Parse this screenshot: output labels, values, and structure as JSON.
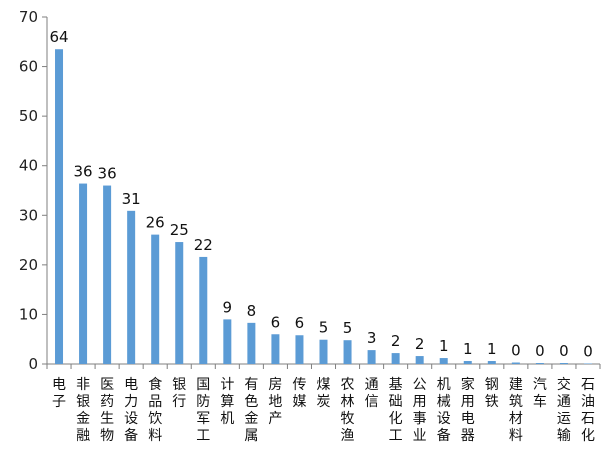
{
  "chart_data": {
    "type": "bar",
    "title": "",
    "xlabel": "",
    "ylabel": "",
    "ylim": [
      0,
      70
    ],
    "yticks": [
      0,
      10,
      20,
      30,
      40,
      50,
      60,
      70
    ],
    "grid": false,
    "legend": "none",
    "bar_color": "#5B9BD5",
    "categories": [
      "电子",
      "非银金融",
      "医药生物",
      "电力设备",
      "食品饮料",
      "银行",
      "国防军工",
      "计算机",
      "有色金属",
      "房地产",
      "传媒",
      "煤炭",
      "农林牧渔",
      "通信",
      "基础化工",
      "公用事业",
      "机械设备",
      "家用电器",
      "钢铁",
      "建筑材料",
      "汽车",
      "交通运输",
      "石油石化"
    ],
    "values": [
      63.5,
      36.4,
      36.0,
      30.9,
      26.1,
      24.6,
      21.6,
      9.0,
      8.3,
      6.0,
      5.8,
      4.9,
      4.8,
      2.8,
      2.2,
      1.6,
      1.2,
      0.6,
      0.6,
      0.3,
      0.2,
      0.2,
      0.1
    ],
    "data_labels": [
      "64",
      "36",
      "36",
      "31",
      "26",
      "25",
      "22",
      "9",
      "8",
      "6",
      "6",
      "5",
      "5",
      "3",
      "2",
      "2",
      "1",
      "1",
      "1",
      "0",
      "0",
      "0",
      "0"
    ]
  }
}
